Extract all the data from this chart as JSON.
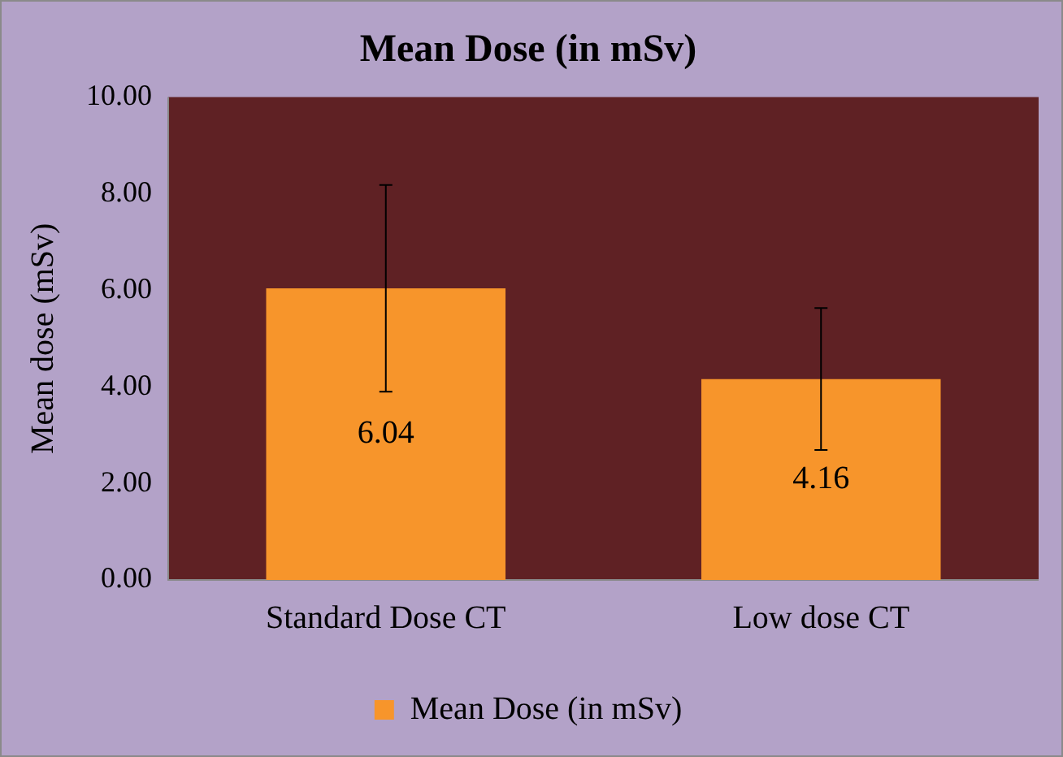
{
  "chart_data": {
    "type": "bar",
    "title": "Mean Dose (in mSv)",
    "ylabel": "Mean dose (mSv)",
    "categories": [
      "Standard Dose CT",
      "Low dose CT"
    ],
    "series": [
      {
        "name": "Mean Dose (in mSv)",
        "color": "#f7952b",
        "values": [
          6.04,
          4.16
        ],
        "errors": [
          2.14,
          1.47
        ]
      }
    ],
    "ylim": [
      0,
      10
    ],
    "yticks": [
      {
        "value": 0,
        "label": "0.00"
      },
      {
        "value": 2,
        "label": "2.00"
      },
      {
        "value": 4,
        "label": "4.00"
      },
      {
        "value": 6,
        "label": "6.00"
      },
      {
        "value": 8,
        "label": "8.00"
      },
      {
        "value": 10,
        "label": "10.00"
      }
    ],
    "grid": false,
    "legend": "bottom",
    "data_labels": true
  }
}
